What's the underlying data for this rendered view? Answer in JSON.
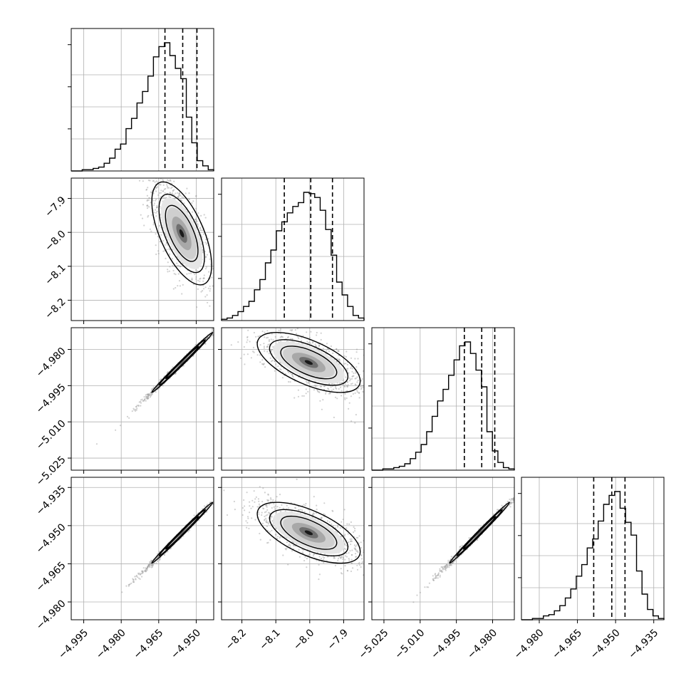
{
  "chart_data": {
    "type": "corner",
    "colors": {
      "line": "#000000",
      "grid": "#b0b0b0",
      "scatter": "#9a9a9a"
    },
    "grid": true,
    "parameters": [
      {
        "range": [
          -5.0,
          -4.943
        ],
        "ticks": [
          -4.995,
          -4.98,
          -4.965,
          -4.95
        ],
        "tick_labels": [
          "−4.995",
          "−4.980",
          "−4.965",
          "−4.950"
        ]
      },
      {
        "range": [
          -8.26,
          -7.84
        ],
        "ticks": [
          -7.9,
          -8.0,
          -8.1,
          -8.2
        ],
        "tick_labels": [
          "−7.9",
          "−8.0",
          "−8.1",
          "−8.2"
        ]
      },
      {
        "range": [
          -5.03,
          -4.971
        ],
        "ticks": [
          -4.98,
          -4.995,
          -5.01,
          -5.025
        ],
        "tick_labels": [
          "−4.980",
          "−4.995",
          "−5.010",
          "−5.025"
        ]
      },
      {
        "range": [
          -4.987,
          -4.931
        ],
        "ticks": [
          -4.935,
          -4.95,
          -4.965,
          -4.98
        ],
        "tick_labels": [
          "−4.935",
          "−4.950",
          "−4.965",
          "−4.980"
        ]
      }
    ],
    "histograms": [
      {
        "param": 0,
        "bins": [
          -5.0,
          -4.943
        ],
        "counts": [
          0.0,
          0.0,
          0.01,
          0.01,
          0.02,
          0.03,
          0.06,
          0.1,
          0.17,
          0.21,
          0.33,
          0.41,
          0.53,
          0.62,
          0.74,
          0.89,
          0.97,
          1.0,
          0.9,
          0.8,
          0.72,
          0.42,
          0.22,
          0.08,
          0.04,
          0.01
        ],
        "quantiles": [
          -4.9625,
          -4.9554,
          -4.9497
        ]
      },
      {
        "param": 1,
        "bins": [
          -8.26,
          -7.84
        ],
        "counts": [
          0.01,
          0.02,
          0.04,
          0.07,
          0.11,
          0.15,
          0.24,
          0.32,
          0.45,
          0.55,
          0.7,
          0.77,
          0.84,
          0.89,
          0.92,
          1.0,
          0.99,
          0.96,
          0.86,
          0.71,
          0.51,
          0.3,
          0.2,
          0.11,
          0.04,
          0.02
        ],
        "quantiles": [
          -8.075,
          -7.997,
          -7.933
        ]
      },
      {
        "param": 2,
        "bins": [
          -5.03,
          -4.971
        ],
        "counts": [
          0.0,
          0.0,
          0.01,
          0.01,
          0.02,
          0.03,
          0.05,
          0.09,
          0.14,
          0.2,
          0.3,
          0.42,
          0.54,
          0.63,
          0.74,
          0.86,
          0.97,
          1.0,
          0.91,
          0.78,
          0.65,
          0.3,
          0.15,
          0.06,
          0.02,
          0.01
        ],
        "quantiles": [
          -4.9917,
          -4.9845,
          -4.9791
        ]
      },
      {
        "param": 3,
        "bins": [
          -4.987,
          -4.931
        ],
        "counts": [
          0.0,
          0.0,
          0.01,
          0.01,
          0.03,
          0.04,
          0.07,
          0.11,
          0.17,
          0.24,
          0.34,
          0.43,
          0.56,
          0.63,
          0.77,
          0.9,
          0.97,
          1.0,
          0.87,
          0.76,
          0.66,
          0.38,
          0.2,
          0.08,
          0.03,
          0.01
        ],
        "quantiles": [
          -4.9586,
          -4.9515,
          -4.9463
        ]
      }
    ],
    "scatter_panels": [
      {
        "x_param": 0,
        "y_param": 1,
        "mean": [
          -4.9558,
          -8.003
        ],
        "sd": [
          0.0052,
          0.066
        ],
        "rho": -0.62,
        "tail": [
          -0.7,
          0.85
        ]
      },
      {
        "x_param": 0,
        "y_param": 2,
        "mean": [
          -4.9556,
          -4.9854
        ],
        "sd": [
          0.0053,
          0.0054
        ],
        "rho": 0.995,
        "tail": [
          -0.7,
          -0.7
        ]
      },
      {
        "x_param": 1,
        "y_param": 2,
        "mean": [
          -8.003,
          -4.9854
        ],
        "sd": [
          0.066,
          0.0054
        ],
        "rho": -0.62,
        "tail": [
          0.85,
          -0.7
        ]
      },
      {
        "x_param": 0,
        "y_param": 3,
        "mean": [
          -4.9556,
          -4.9528
        ],
        "sd": [
          0.0053,
          0.0052
        ],
        "rho": 0.995,
        "tail": [
          -0.7,
          -0.7
        ]
      },
      {
        "x_param": 1,
        "y_param": 3,
        "mean": [
          -8.003,
          -4.9528
        ],
        "sd": [
          0.066,
          0.0052
        ],
        "rho": -0.62,
        "tail": [
          0.85,
          -0.7
        ]
      },
      {
        "x_param": 2,
        "y_param": 3,
        "mean": [
          -4.9854,
          -4.9528
        ],
        "sd": [
          0.0054,
          0.0052
        ],
        "rho": 0.995,
        "tail": [
          -0.7,
          -0.7
        ]
      }
    ]
  }
}
